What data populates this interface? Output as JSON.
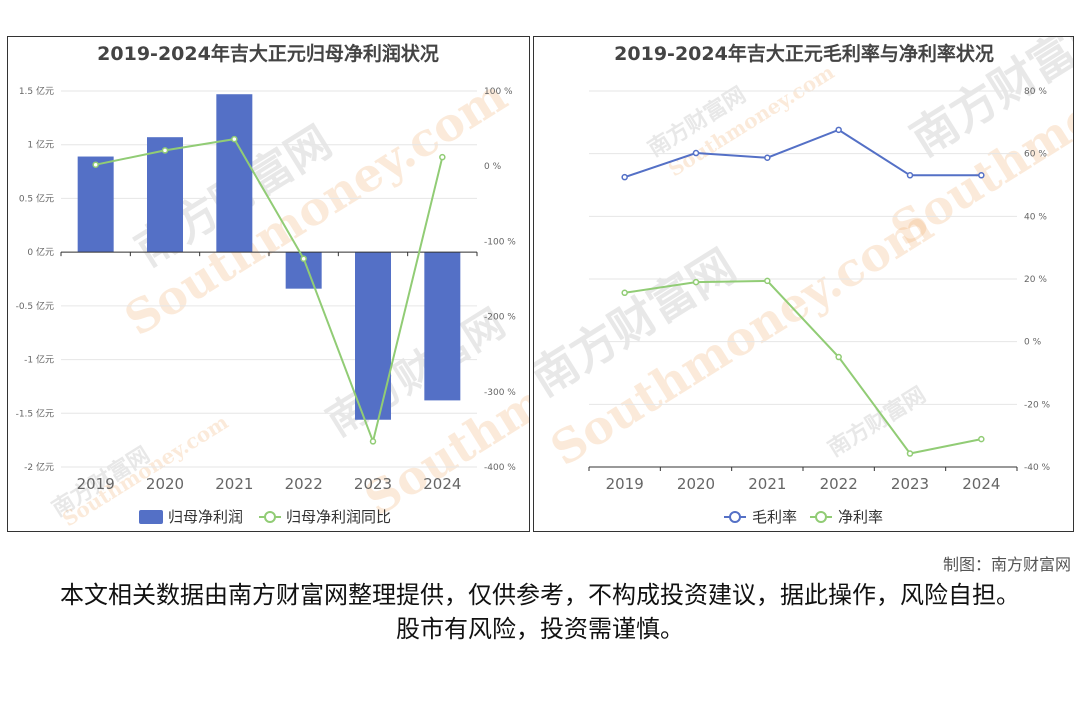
{
  "credit": "制图：南方财富网",
  "disclaimer": "本文相关数据由南方财富网整理提供，仅供参考，不构成投资建议，据此操作，风险自担。股市有风险，投资需谨慎。",
  "watermark": {
    "cn": "南方财富网",
    "en": "Southmoney.com"
  },
  "chart_data": [
    {
      "type": "bar",
      "title": "2019-2024年吉大正元归母净利润状况",
      "categories": [
        "2019",
        "2020",
        "2021",
        "2022",
        "2023",
        "2024"
      ],
      "series": [
        {
          "name": "归母净利润",
          "type": "bar",
          "axis": "left",
          "values": [
            0.89,
            1.07,
            1.47,
            -0.34,
            -1.56,
            -1.38
          ]
        },
        {
          "name": "归母净利润同比",
          "type": "line",
          "axis": "right",
          "values": [
            2,
            21,
            36,
            -123,
            -366,
            12
          ]
        }
      ],
      "y_left": {
        "min": -2,
        "max": 1.5,
        "ticks": [
          "1.5 亿元",
          "1 亿元",
          "0.5 亿元",
          "0 亿元",
          "-0.5 亿元",
          "-1 亿元",
          "-1.5 亿元",
          "-2 亿元"
        ]
      },
      "y_right": {
        "min": -400,
        "max": 100,
        "ticks": [
          "100 %",
          "0 %",
          "-100 %",
          "-200 %",
          "-300 %",
          "-400 %"
        ]
      },
      "grid": true,
      "legend": "bottom",
      "colors": {
        "bar": "#5470c6",
        "line": "#91cc75"
      }
    },
    {
      "type": "line",
      "title": "2019-2024年吉大正元毛利率与净利率状况",
      "categories": [
        "2019",
        "2020",
        "2021",
        "2022",
        "2023",
        "2024"
      ],
      "series": [
        {
          "name": "毛利率",
          "values": [
            52.5,
            60.2,
            58.7,
            67.6,
            53.1,
            53.1
          ]
        },
        {
          "name": "净利率",
          "values": [
            15.6,
            19.0,
            19.4,
            -4.9,
            -35.7,
            -31.1
          ]
        }
      ],
      "y_right": {
        "min": -40,
        "max": 80,
        "ticks": [
          "80 %",
          "60 %",
          "40 %",
          "20 %",
          "0 %",
          "-20 %",
          "-40 %"
        ]
      },
      "grid": true,
      "legend": "bottom",
      "colors": {
        "s1": "#5470c6",
        "s2": "#91cc75"
      }
    }
  ]
}
